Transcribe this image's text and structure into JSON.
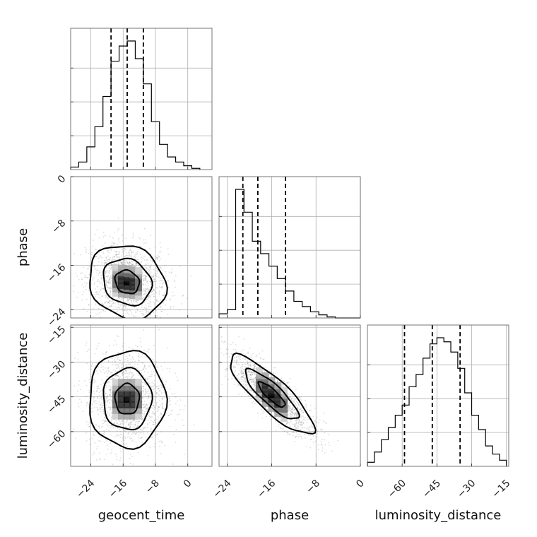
{
  "chart_data": {
    "type": "corner",
    "parameters": [
      "geocent_time",
      "phase",
      "luminosity_distance"
    ],
    "axis_labels": {
      "geocent_time": "geocent_time",
      "phase": "phase",
      "luminosity_distance": "luminosity_distance"
    },
    "ticks": {
      "geocent_time": [
        "−24",
        "−16",
        "−8",
        "0"
      ],
      "phase": [
        "−24",
        "−16",
        "−8",
        "0"
      ],
      "luminosity_distance": [
        "−60",
        "−45",
        "−30",
        "−15"
      ]
    },
    "ranges": {
      "geocent_time": [
        -29,
        6
      ],
      "phase": [
        -25.5,
        0
      ],
      "luminosity_distance": [
        -75,
        -14
      ]
    },
    "diagonal": [
      {
        "parameter": "geocent_time",
        "bins": [
          -29,
          -27,
          -25,
          -23,
          -21,
          -19,
          -17,
          -15,
          -13,
          -11,
          -9,
          -7,
          -5,
          -3,
          -1,
          1,
          3
        ],
        "counts": [
          2,
          6,
          18,
          34,
          58,
          86,
          98,
          102,
          88,
          68,
          38,
          20,
          10,
          6,
          3,
          1
        ],
        "quantiles": [
          -19.0,
          -15.0,
          -11.0
        ]
      },
      {
        "parameter": "phase",
        "bins": [
          -25.5,
          -24,
          -22.5,
          -21,
          -19.5,
          -18,
          -16.5,
          -15,
          -13.5,
          -12,
          -10.5,
          -9,
          -7.5,
          -6,
          -4.5,
          -3,
          -1.5,
          0
        ],
        "counts": [
          4,
          8,
          124,
          102,
          74,
          62,
          50,
          38,
          26,
          16,
          11,
          6,
          3,
          1,
          0,
          0,
          0
        ],
        "quantiles": [
          -21.2,
          -18.5,
          -13.5
        ]
      },
      {
        "parameter": "luminosity_distance",
        "bins": [
          -75,
          -72,
          -69,
          -66,
          -63,
          -60,
          -57,
          -54,
          -51,
          -48,
          -45,
          -42,
          -39,
          -36,
          -33,
          -30,
          -27,
          -24,
          -21,
          -18,
          -15
        ],
        "counts": [
          4,
          14,
          26,
          38,
          50,
          60,
          78,
          90,
          106,
          120,
          126,
          122,
          112,
          96,
          72,
          50,
          36,
          20,
          12,
          6
        ],
        "quantiles": [
          -59.0,
          -47.0,
          -35.0
        ]
      }
    ],
    "off_diagonal": [
      {
        "x": "geocent_time",
        "y": "phase",
        "center": [
          -15,
          -19
        ],
        "spread": [
          5,
          3.5
        ],
        "correlation": -0.15,
        "contour_levels": [
          "0.39",
          "0.86",
          "1.0"
        ]
      },
      {
        "x": "geocent_time",
        "y": "luminosity_distance",
        "center": [
          -15,
          -46
        ],
        "spread": [
          5,
          11
        ],
        "correlation": 0.0,
        "contour_levels": [
          "0.39",
          "0.86",
          "1.0"
        ]
      },
      {
        "x": "phase",
        "y": "luminosity_distance",
        "center": [
          -16,
          -44
        ],
        "spread": [
          4,
          9
        ],
        "correlation": -0.85,
        "contour_levels": [
          "0.39",
          "0.86",
          "1.0"
        ]
      }
    ]
  }
}
